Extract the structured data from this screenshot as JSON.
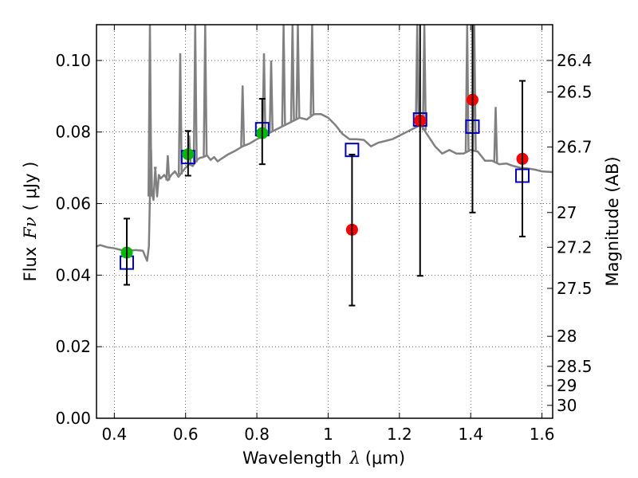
{
  "chart_data": {
    "type": "scatter",
    "title": "",
    "xlabel": "Wavelength",
    "xlabel_symbol": "λ",
    "xlabel_unit": "(μm)",
    "ylabel": "Flux",
    "ylabel_symbol": "Fν",
    "ylabel_unit": "( μJy )",
    "y2label": "Magnitude (AB)",
    "xlim": [
      0.35,
      1.63
    ],
    "ylim": [
      0.0,
      0.11
    ],
    "grid": true,
    "grid_style": "dotted",
    "x_ticks": [
      {
        "value": 0.4,
        "label": "0.4"
      },
      {
        "value": 0.6,
        "label": "0.6"
      },
      {
        "value": 0.8,
        "label": "0.8"
      },
      {
        "value": 1.0,
        "label": "1"
      },
      {
        "value": 1.2,
        "label": "1.2"
      },
      {
        "value": 1.4,
        "label": "1.4"
      },
      {
        "value": 1.6,
        "label": "1.6"
      }
    ],
    "y_ticks": [
      {
        "value": 0.0,
        "label": "0.00"
      },
      {
        "value": 0.02,
        "label": "0.02"
      },
      {
        "value": 0.04,
        "label": "0.04"
      },
      {
        "value": 0.06,
        "label": "0.06"
      },
      {
        "value": 0.08,
        "label": "0.08"
      },
      {
        "value": 0.1,
        "label": "0.10"
      }
    ],
    "mag_ticks": [
      {
        "label": "26.4",
        "flux": 0.1
      },
      {
        "label": "26.5",
        "flux": 0.0912
      },
      {
        "label": "26.7",
        "flux": 0.0758
      },
      {
        "label": "27",
        "flux": 0.0575
      },
      {
        "label": "27.2",
        "flux": 0.0478
      },
      {
        "label": "27.5",
        "flux": 0.0363
      },
      {
        "label": "28",
        "flux": 0.0229
      },
      {
        "label": "28.5",
        "flux": 0.0145
      },
      {
        "label": "29",
        "flux": 0.0091
      },
      {
        "label": "30",
        "flux": 0.0036
      }
    ],
    "series": [
      {
        "type": "line",
        "color": "#808080",
        "points": [
          [
            0.35,
            0.048
          ],
          [
            0.36,
            0.0484
          ],
          [
            0.38,
            0.0478
          ],
          [
            0.4,
            0.0475
          ],
          [
            0.42,
            0.047
          ],
          [
            0.44,
            0.0468
          ],
          [
            0.46,
            0.047
          ],
          [
            0.48,
            0.0468
          ],
          [
            0.492,
            0.044
          ],
          [
            0.497,
            0.048
          ],
          [
            0.5,
            0.062
          ],
          [
            0.503,
            0.075
          ],
          [
            0.506,
            0.063
          ],
          [
            0.51,
            0.061
          ],
          [
            0.515,
            0.07
          ],
          [
            0.52,
            0.062
          ],
          [
            0.525,
            0.068
          ],
          [
            0.53,
            0.067
          ],
          [
            0.54,
            0.068
          ],
          [
            0.55,
            0.0665
          ],
          [
            0.56,
            0.068
          ],
          [
            0.57,
            0.069
          ],
          [
            0.58,
            0.0675
          ],
          [
            0.59,
            0.0688
          ],
          [
            0.6,
            0.07
          ],
          [
            0.61,
            0.071
          ],
          [
            0.62,
            0.0705
          ],
          [
            0.63,
            0.072
          ],
          [
            0.64,
            0.0728
          ],
          [
            0.65,
            0.073
          ],
          [
            0.66,
            0.0735
          ],
          [
            0.67,
            0.0722
          ],
          [
            0.68,
            0.073
          ],
          [
            0.69,
            0.0718
          ],
          [
            0.7,
            0.0725
          ],
          [
            0.72,
            0.0738
          ],
          [
            0.74,
            0.0748
          ],
          [
            0.76,
            0.076
          ],
          [
            0.78,
            0.0768
          ],
          [
            0.8,
            0.078
          ],
          [
            0.82,
            0.079
          ],
          [
            0.84,
            0.08
          ],
          [
            0.86,
            0.081
          ],
          [
            0.88,
            0.082
          ],
          [
            0.9,
            0.083
          ],
          [
            0.92,
            0.084
          ],
          [
            0.94,
            0.0835
          ],
          [
            0.96,
            0.085
          ],
          [
            0.98,
            0.085
          ],
          [
            1.0,
            0.084
          ],
          [
            1.02,
            0.082
          ],
          [
            1.04,
            0.0795
          ],
          [
            1.06,
            0.078
          ],
          [
            1.08,
            0.078
          ],
          [
            1.1,
            0.0778
          ],
          [
            1.12,
            0.076
          ],
          [
            1.14,
            0.077
          ],
          [
            1.16,
            0.0775
          ],
          [
            1.18,
            0.078
          ],
          [
            1.2,
            0.079
          ],
          [
            1.22,
            0.08
          ],
          [
            1.24,
            0.081
          ],
          [
            1.26,
            0.082
          ],
          [
            1.28,
            0.079
          ],
          [
            1.3,
            0.076
          ],
          [
            1.32,
            0.074
          ],
          [
            1.34,
            0.075
          ],
          [
            1.36,
            0.074
          ],
          [
            1.38,
            0.074
          ],
          [
            1.4,
            0.075
          ],
          [
            1.42,
            0.0745
          ],
          [
            1.44,
            0.072
          ],
          [
            1.46,
            0.072
          ],
          [
            1.48,
            0.071
          ],
          [
            1.5,
            0.0712
          ],
          [
            1.52,
            0.0705
          ],
          [
            1.54,
            0.07
          ],
          [
            1.56,
            0.0698
          ],
          [
            1.58,
            0.0695
          ],
          [
            1.6,
            0.069
          ],
          [
            1.63,
            0.0688
          ]
        ]
      },
      {
        "type": "line_spikes",
        "color": "#808080",
        "spikes": [
          [
            0.5,
            0.11
          ],
          [
            0.515,
            0.07
          ],
          [
            0.55,
            0.0735
          ],
          [
            0.585,
            0.102
          ],
          [
            0.61,
            0.079
          ],
          [
            0.627,
            0.11
          ],
          [
            0.655,
            0.11
          ],
          [
            0.76,
            0.093
          ],
          [
            0.82,
            0.102
          ],
          [
            0.84,
            0.1
          ],
          [
            0.875,
            0.11
          ],
          [
            0.9,
            0.11
          ],
          [
            0.915,
            0.11
          ],
          [
            0.955,
            0.11
          ],
          [
            1.25,
            0.11
          ],
          [
            1.27,
            0.11
          ],
          [
            1.39,
            0.11
          ],
          [
            1.41,
            0.11
          ],
          [
            1.47,
            0.087
          ]
        ]
      },
      {
        "type": "scatter",
        "marker": "square",
        "color": "#0000cc",
        "points": [
          [
            0.435,
            0.0435
          ],
          [
            0.607,
            0.073
          ],
          [
            0.815,
            0.0808
          ],
          [
            1.067,
            0.075
          ],
          [
            1.258,
            0.0835
          ],
          [
            1.405,
            0.0815
          ],
          [
            1.545,
            0.0678
          ]
        ]
      },
      {
        "type": "scatter",
        "marker": "circle",
        "color": "#00bb00",
        "points": [
          [
            0.435,
            0.0463
          ],
          [
            0.607,
            0.0738
          ],
          [
            0.815,
            0.0797
          ]
        ]
      },
      {
        "type": "scatter",
        "marker": "circle",
        "color": "#ff0000",
        "points": [
          [
            1.067,
            0.0527
          ],
          [
            1.258,
            0.0832
          ],
          [
            1.405,
            0.089
          ],
          [
            1.545,
            0.0725
          ]
        ]
      },
      {
        "type": "errorbar",
        "color": "#000000",
        "bars": [
          [
            0.435,
            0.0373,
            0.0558
          ],
          [
            0.607,
            0.0678,
            0.0803
          ],
          [
            0.815,
            0.071,
            0.0893
          ],
          [
            1.067,
            0.0315,
            0.0737
          ],
          [
            1.258,
            0.0398,
            0.11
          ],
          [
            1.405,
            0.0575,
            0.11
          ],
          [
            1.545,
            0.0508,
            0.0943
          ]
        ]
      }
    ]
  }
}
